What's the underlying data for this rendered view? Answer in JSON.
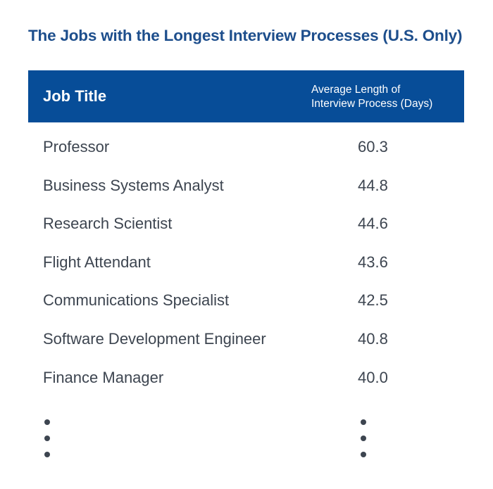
{
  "chart_data": {
    "type": "table",
    "title": "The Jobs with the Longest Interview Processes (U.S. Only)",
    "columns": [
      "Job Title",
      "Average Length of Interview Process (Days)"
    ],
    "column_header_lines": [
      "Average Length of",
      "Interview Process (Days)"
    ],
    "rows": [
      {
        "job": "Professor",
        "value": "60.3"
      },
      {
        "job": "Business Systems Analyst",
        "value": "44.8"
      },
      {
        "job": "Research Scientist",
        "value": "44.6"
      },
      {
        "job": "Flight Attendant",
        "value": "43.6"
      },
      {
        "job": "Communications Specialist",
        "value": "42.5"
      },
      {
        "job": "Software Development Engineer",
        "value": "40.8"
      },
      {
        "job": "Finance Manager",
        "value": "40.0"
      }
    ],
    "continuation": "vertical-ellipsis",
    "colors": {
      "title": "#1d4e8c",
      "header_bg": "#074d98",
      "header_text": "#ffffff",
      "body_text": "#3d4550"
    }
  }
}
